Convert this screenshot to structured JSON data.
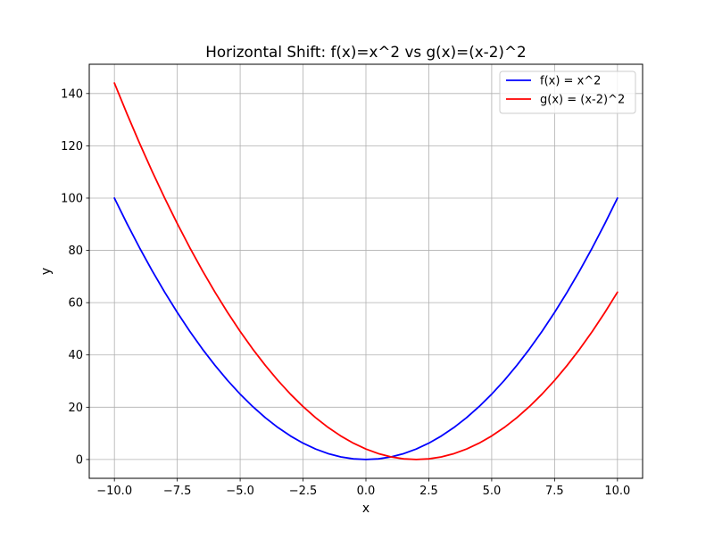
{
  "chart_data": {
    "type": "line",
    "title": "Horizontal Shift: f(x)=x^2 vs g(x)=(x-2)^2",
    "xlabel": "x",
    "ylabel": "y",
    "xlim": [
      -11,
      11
    ],
    "ylim": [
      -7.2,
      151.2
    ],
    "xticks": [
      -10,
      -7.5,
      -5,
      -2.5,
      0,
      2.5,
      5,
      7.5,
      10
    ],
    "xtick_labels": [
      "−10.0",
      "−7.5",
      "−5.0",
      "−2.5",
      "0.0",
      "2.5",
      "5.0",
      "7.5",
      "10.0"
    ],
    "yticks": [
      0,
      20,
      40,
      60,
      80,
      100,
      120,
      140
    ],
    "ytick_labels": [
      "0",
      "20",
      "40",
      "60",
      "80",
      "100",
      "120",
      "140"
    ],
    "grid": true,
    "legend_position": "upper right",
    "x": [
      -10,
      -9.5,
      -9,
      -8.5,
      -8,
      -7.5,
      -7,
      -6.5,
      -6,
      -5.5,
      -5,
      -4.5,
      -4,
      -3.5,
      -3,
      -2.5,
      -2,
      -1.5,
      -1,
      -0.5,
      0,
      0.5,
      1,
      1.5,
      2,
      2.5,
      3,
      3.5,
      4,
      4.5,
      5,
      5.5,
      6,
      6.5,
      7,
      7.5,
      8,
      8.5,
      9,
      9.5,
      10
    ],
    "series": [
      {
        "name": "f(x) = x^2",
        "color": "#0000ff",
        "values": [
          100,
          90.25,
          81,
          72.25,
          64,
          56.25,
          49,
          42.25,
          36,
          30.25,
          25,
          20.25,
          16,
          12.25,
          9,
          6.25,
          4,
          2.25,
          1,
          0.25,
          0,
          0.25,
          1,
          2.25,
          4,
          6.25,
          9,
          12.25,
          16,
          20.25,
          25,
          30.25,
          36,
          42.25,
          49,
          56.25,
          64,
          72.25,
          81,
          90.25,
          100
        ]
      },
      {
        "name": "g(x) = (x-2)^2",
        "color": "#ff0000",
        "values": [
          144,
          132.25,
          121,
          110.25,
          100,
          90.25,
          81,
          72.25,
          64,
          56.25,
          49,
          42.25,
          36,
          30.25,
          25,
          20.25,
          16,
          12.25,
          9,
          6.25,
          4,
          2.25,
          1,
          0.25,
          0,
          0.25,
          1,
          2.25,
          4,
          6.25,
          9,
          12.25,
          16,
          20.25,
          25,
          30.25,
          36,
          42.25,
          49,
          56.25,
          64
        ]
      }
    ]
  }
}
